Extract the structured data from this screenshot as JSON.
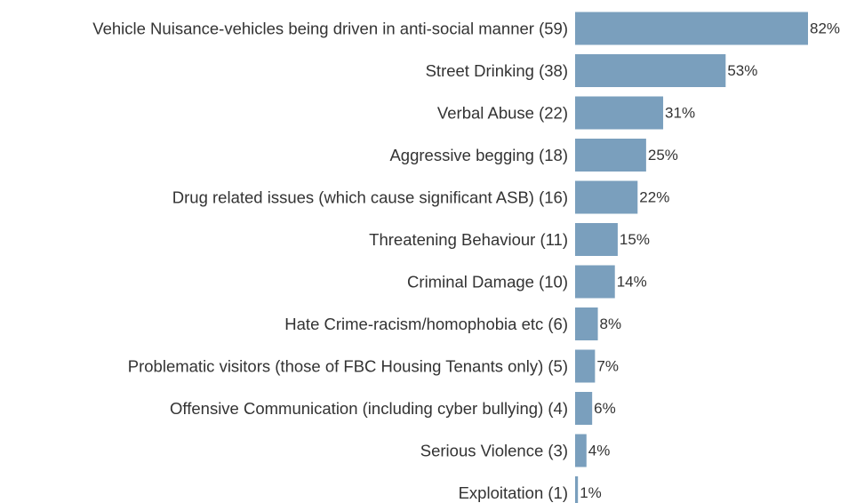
{
  "chart_data": {
    "type": "bar",
    "orientation": "horizontal",
    "title": "",
    "xlabel": "",
    "ylabel": "",
    "xlim": [
      0,
      82
    ],
    "grid": false,
    "legend": "none",
    "bar_color": "#7a9fbd",
    "categories": [
      "Vehicle Nuisance-vehicles being driven in anti-social manner (59)",
      "Street Drinking (38)",
      "Verbal Abuse (22)",
      "Aggressive begging (18)",
      "Drug related issues (which cause significant ASB) (16)",
      "Threatening Behaviour  (11)",
      "Criminal Damage (10)",
      "Hate Crime-racism/homophobia etc (6)",
      "Problematic visitors (those of FBC Housing Tenants only) (5)",
      "Offensive Communication (including cyber bullying) (4)",
      "Serious Violence (3)",
      "Exploitation (1)"
    ],
    "values": [
      82,
      53,
      31,
      25,
      22,
      15,
      14,
      8,
      7,
      6,
      4,
      1
    ],
    "value_labels": [
      "82%",
      "53%",
      "31%",
      "25%",
      "22%",
      "15%",
      "14%",
      "8%",
      "7%",
      "6%",
      "4%",
      "1%"
    ]
  }
}
